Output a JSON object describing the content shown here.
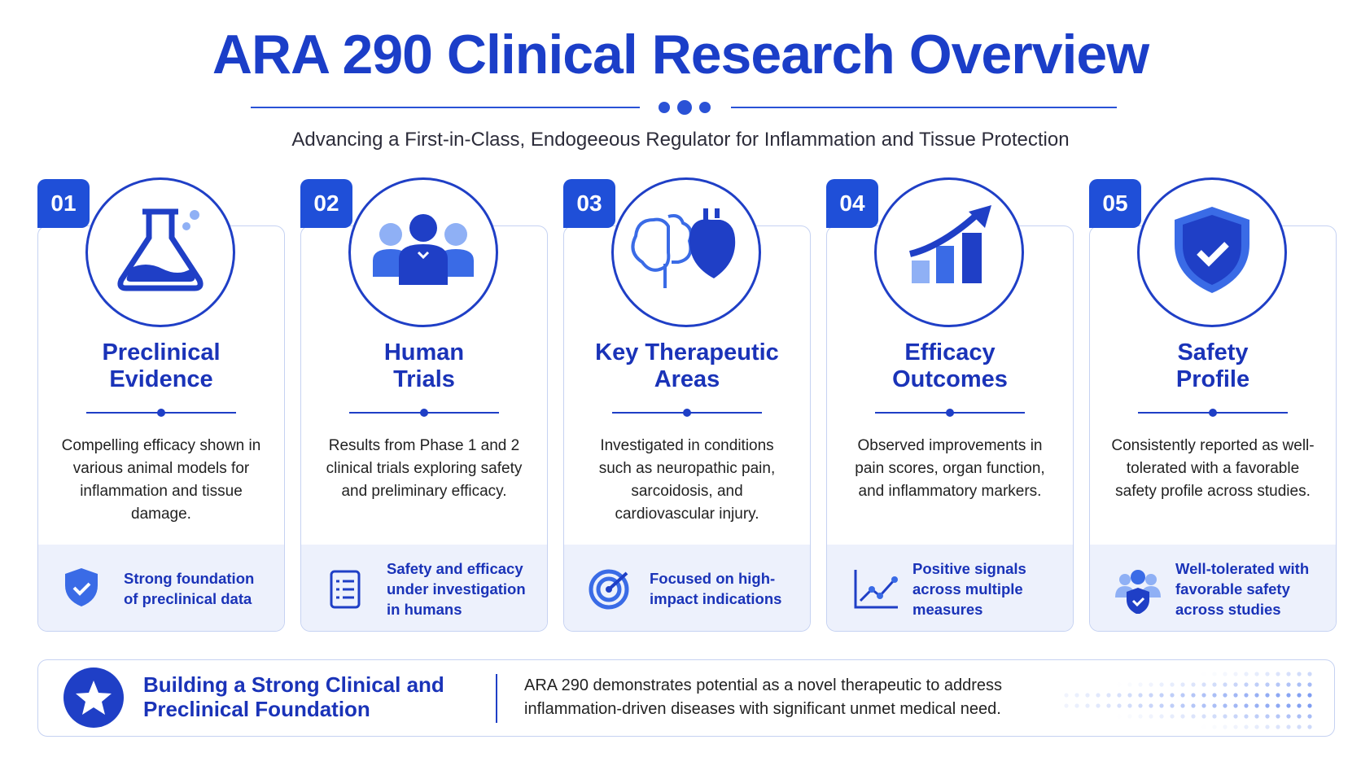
{
  "header": {
    "title": "ARA 290 Clinical Research Overview",
    "subtitle": "Advancing a First-in-Class, Endogeeous Regulator for Inflammation and Tissue Protection"
  },
  "cards": [
    {
      "number": "01",
      "title": [
        "Preclinical",
        "Evidence"
      ],
      "description": "Compelling efficacy shown in various animal models for inflammation and tissue damage.",
      "highlight": [
        "Strong foundation",
        "of preclinical data"
      ]
    },
    {
      "number": "02",
      "title": [
        "Human",
        "Trials"
      ],
      "description": "Results from Phase 1 and 2 clinical trials exploring safety and preliminary efficacy.",
      "highlight": [
        "Safety and efficacy",
        "under investigation",
        "in humans"
      ]
    },
    {
      "number": "03",
      "title": [
        "Key Therapeutic",
        "Areas"
      ],
      "description": "Investigated in conditions such as neuropathic pain, sarcoidosis, and cardiovascular injury.",
      "highlight": [
        "Focused on high-",
        "impact indications"
      ]
    },
    {
      "number": "04",
      "title": [
        "Efficacy",
        "Outcomes"
      ],
      "description": "Observed improvements in pain scores, organ function, and inflammatory markers.",
      "highlight": [
        "Positive signals",
        "across multiple",
        "measures"
      ]
    },
    {
      "number": "05",
      "title": [
        "Safety",
        "Profile"
      ],
      "description": "Consistently reported as well-tolerated with a favorable safety profile across studies.",
      "highlight": [
        "Well-tolerated with",
        "favorable safety",
        "across studies"
      ]
    }
  ],
  "footer": {
    "heading": [
      "Building a Strong Clinical and",
      "Preclinical Foundation"
    ],
    "text": "ARA 290 demonstrates potential as a novel therapeutic to address inflammation-driven diseases with significant unmet medical need."
  }
}
